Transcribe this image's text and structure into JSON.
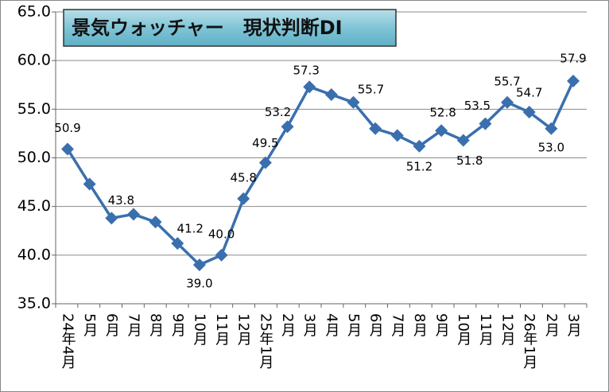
{
  "chart_data": {
    "type": "line",
    "title": "景気ウォッチャー　現状判断DI",
    "categories": [
      "24年4月",
      "5月",
      "6月",
      "7月",
      "8月",
      "9月",
      "10月",
      "11月",
      "12月",
      "25年1月",
      "2月",
      "3月",
      "4月",
      "5月",
      "6月",
      "7月",
      "8月",
      "9月",
      "10月",
      "11月",
      "12月",
      "26年1月",
      "2月",
      "3月"
    ],
    "series": [
      {
        "name": "現状判断DI",
        "color": "#3a6fae",
        "values": [
          50.9,
          47.3,
          43.8,
          44.2,
          43.4,
          41.2,
          39.0,
          40.0,
          45.8,
          49.5,
          53.2,
          57.3,
          56.5,
          55.7,
          53.0,
          52.3,
          51.2,
          52.8,
          51.8,
          53.5,
          55.7,
          54.7,
          53.0,
          57.9
        ],
        "value_labels": [
          "50.9",
          null,
          "43.8",
          null,
          null,
          "41.2",
          "39.0",
          "40.0",
          "45.8",
          "49.5",
          "53.2",
          "57.3",
          null,
          "55.7",
          null,
          null,
          "51.2",
          "52.8",
          "51.8",
          "53.5",
          "55.7",
          "54.7",
          "53.0",
          "57.9"
        ]
      }
    ],
    "ylim": [
      35,
      65
    ],
    "yticks": [
      {
        "value": 35,
        "label": "35.0"
      },
      {
        "value": 40,
        "label": "40.0"
      },
      {
        "value": 45,
        "label": "45.0"
      },
      {
        "value": 50,
        "label": "50.0"
      },
      {
        "value": 55,
        "label": "55.0"
      },
      {
        "value": 60,
        "label": "60.0"
      },
      {
        "value": 65,
        "label": "65.0"
      }
    ],
    "grid": true
  }
}
